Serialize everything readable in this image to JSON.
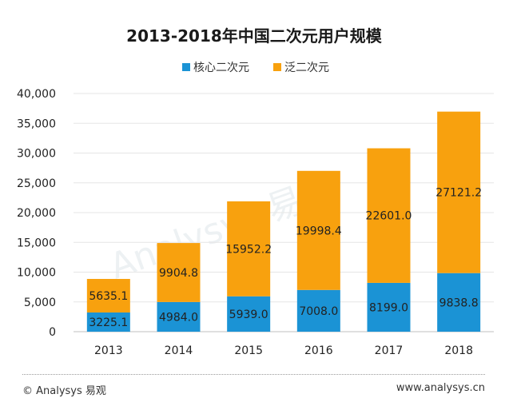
{
  "colors": {
    "core": "#1b93d5",
    "pan": "#f8a10e",
    "grid": "#e6e6e6",
    "axis": "#bfbfbf"
  },
  "chart_data": {
    "type": "bar",
    "stacked": true,
    "title": "2013-2018年中国二次元用户规模",
    "categories": [
      "2013",
      "2014",
      "2015",
      "2016",
      "2017",
      "2018"
    ],
    "series": [
      {
        "name": "核心二次元",
        "values": [
          3225.1,
          4984.0,
          5939.0,
          7008.0,
          8199.0,
          9838.8
        ],
        "labels": [
          "3225.1",
          "4984.0",
          "5939.0",
          "7008.0",
          "8199.0",
          "9838.8"
        ]
      },
      {
        "name": "泛二次元",
        "values": [
          5635.1,
          9904.8,
          15952.2,
          19998.4,
          22601.0,
          27121.2
        ],
        "labels": [
          "5635.1",
          "9904.8",
          "15952.2",
          "19998.4",
          "22601.0",
          "27121.2"
        ]
      }
    ],
    "ylim": [
      0,
      40000
    ],
    "yticks": [
      0,
      5000,
      10000,
      15000,
      20000,
      25000,
      30000,
      35000,
      40000
    ],
    "ytick_labels": [
      "0",
      "5,000",
      "10,000",
      "15,000",
      "20,000",
      "25,000",
      "30,000",
      "35,000",
      "40,000"
    ],
    "legend_position": "top-center",
    "grid": true
  },
  "watermark": "Analysys 易观",
  "footer": {
    "left": "© Analysys 易观",
    "right": "www.analysys.cn"
  }
}
